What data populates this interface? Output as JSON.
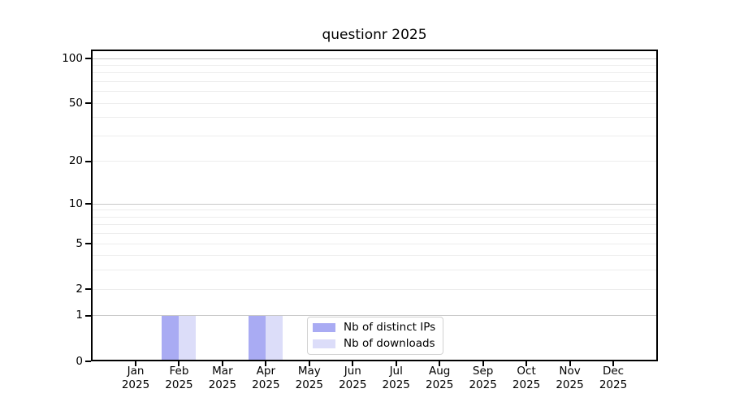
{
  "chart_data": {
    "type": "bar",
    "title": "questionr 2025",
    "x_tick_months": [
      "Jan",
      "Feb",
      "Mar",
      "Apr",
      "May",
      "Jun",
      "Jul",
      "Aug",
      "Sep",
      "Oct",
      "Nov",
      "Dec"
    ],
    "x_tick_year": "2025",
    "series": [
      {
        "name": "Nb of distinct IPs",
        "color": "#a9abf3",
        "values": [
          0,
          1,
          0,
          1,
          0,
          0,
          0,
          0,
          0,
          0,
          0,
          0
        ]
      },
      {
        "name": "Nb of downloads",
        "color": "#dcddf9",
        "values": [
          0,
          1,
          0,
          1,
          0,
          0,
          0,
          0,
          0,
          0,
          0,
          0
        ]
      }
    ],
    "y_axis": {
      "scale": "log1p",
      "tick_values": [
        0,
        1,
        2,
        5,
        10,
        20,
        50,
        100
      ],
      "tick_labels": [
        "0",
        "1",
        "2",
        "5",
        "10",
        "20",
        "50",
        "100"
      ],
      "major_grid_values": [
        1,
        10,
        100
      ],
      "minor_grid_values": [
        2,
        3,
        4,
        5,
        6,
        7,
        8,
        9,
        20,
        30,
        40,
        50,
        60,
        70,
        80,
        90
      ],
      "ylim": [
        0,
        112
      ]
    },
    "legend_position": "lower center",
    "colors": {
      "grid_major": "#c8c8c8",
      "grid_minor": "#ededed",
      "spine": "#000000",
      "legend_border": "#d2d2d2",
      "background": "#ffffff"
    }
  }
}
